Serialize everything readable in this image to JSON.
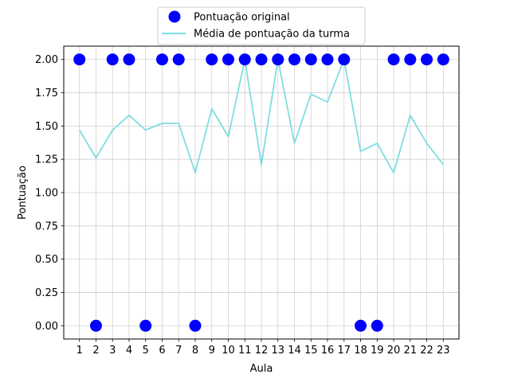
{
  "chart_data": {
    "type": "scatter",
    "xlabel": "Aula",
    "ylabel": "Pontuação",
    "x": [
      1,
      2,
      3,
      4,
      5,
      6,
      7,
      8,
      9,
      10,
      11,
      12,
      13,
      14,
      15,
      16,
      17,
      18,
      19,
      20,
      21,
      22,
      23
    ],
    "xlim": [
      0.05,
      23.95
    ],
    "ylim": [
      -0.1,
      2.1
    ],
    "grid": true,
    "legend_position": "top-center",
    "x_tick_labels": [
      "1",
      "2",
      "3",
      "4",
      "5",
      "6",
      "7",
      "8",
      "9",
      "10",
      "11",
      "12",
      "13",
      "14",
      "15",
      "16",
      "17",
      "18",
      "19",
      "20",
      "21",
      "22",
      "23"
    ],
    "y_ticks": [
      0,
      0.25,
      0.5,
      0.75,
      1.0,
      1.25,
      1.5,
      1.75,
      2.0
    ],
    "y_tick_labels": [
      "0.00",
      "0.25",
      "0.50",
      "0.75",
      "1.00",
      "1.25",
      "1.50",
      "1.75",
      "2.00"
    ],
    "series": [
      {
        "name": "Pontuação original",
        "kind": "scatter",
        "color": "#0000ff",
        "values": [
          2,
          0,
          2,
          2,
          0,
          2,
          2,
          0,
          2,
          2,
          2,
          2,
          2,
          2,
          2,
          2,
          2,
          0,
          0,
          2,
          2,
          2,
          2
        ]
      },
      {
        "name": "Média de pontuação da turma",
        "kind": "line",
        "color": "#7fdde0",
        "values": [
          1.47,
          1.26,
          1.47,
          1.58,
          1.47,
          1.52,
          1.52,
          1.15,
          1.63,
          1.42,
          2.0,
          1.21,
          2.0,
          1.37,
          1.74,
          1.68,
          2.0,
          1.31,
          1.37,
          1.15,
          1.58,
          1.37,
          1.21
        ]
      }
    ]
  }
}
